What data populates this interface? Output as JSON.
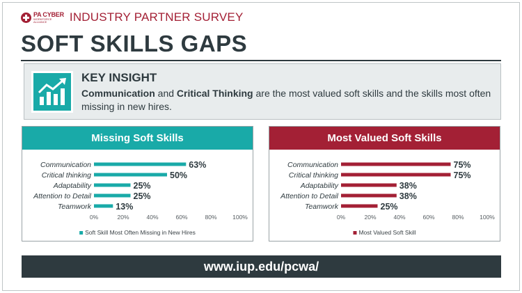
{
  "header": {
    "logo_main": "PA CYBER",
    "logo_sub_1": "WORKFORCE",
    "logo_sub_2": "ALLIANCE",
    "survey_title": "INDUSTRY PARTNER SURVEY",
    "main_title": "SOFT SKILLS GAPS"
  },
  "insight": {
    "icon": "growth-chart-icon",
    "heading": "KEY INSIGHT",
    "bold_1": "Communication",
    "connector": " and ",
    "bold_2": "Critical Thinking",
    "rest": " are the most valued soft skills and the skills most often missing in new hires."
  },
  "colors": {
    "teal": "#19aaa8",
    "crimson": "#a32035",
    "slate": "#2e3a3f"
  },
  "chart_data": [
    {
      "type": "bar",
      "orientation": "horizontal",
      "title": "Missing Soft Skills",
      "categories": [
        "Communication",
        "Critical thinking",
        "Adaptability",
        "Attention to Detail",
        "Teamwork"
      ],
      "series": [
        {
          "name": "Soft Skill Most Often Missing in New Hires",
          "values": [
            63,
            50,
            25,
            25,
            13
          ],
          "color": "#19aaa8"
        }
      ],
      "value_labels": [
        "63%",
        "50%",
        "25%",
        "25%",
        "13%"
      ],
      "xlim": [
        0,
        100
      ],
      "ticks": [
        "0%",
        "20%",
        "40%",
        "60%",
        "80%",
        "100%"
      ],
      "legend_position": "bottom",
      "grid": false
    },
    {
      "type": "bar",
      "orientation": "horizontal",
      "title": "Most Valued Soft Skills",
      "categories": [
        "Communication",
        "Critical thinking",
        "Adaptability",
        "Attention to Detail",
        "Teamwork"
      ],
      "series": [
        {
          "name": "Most Valued Soft Skill",
          "values": [
            75,
            75,
            38,
            38,
            25
          ],
          "color": "#a32035"
        }
      ],
      "value_labels": [
        "75%",
        "75%",
        "38%",
        "38%",
        "25%"
      ],
      "xlim": [
        0,
        100
      ],
      "ticks": [
        "0%",
        "20%",
        "40%",
        "60%",
        "80%",
        "100%"
      ],
      "legend_position": "bottom",
      "grid": false
    }
  ],
  "footer": {
    "url": "www.iup.edu/pcwa/"
  }
}
